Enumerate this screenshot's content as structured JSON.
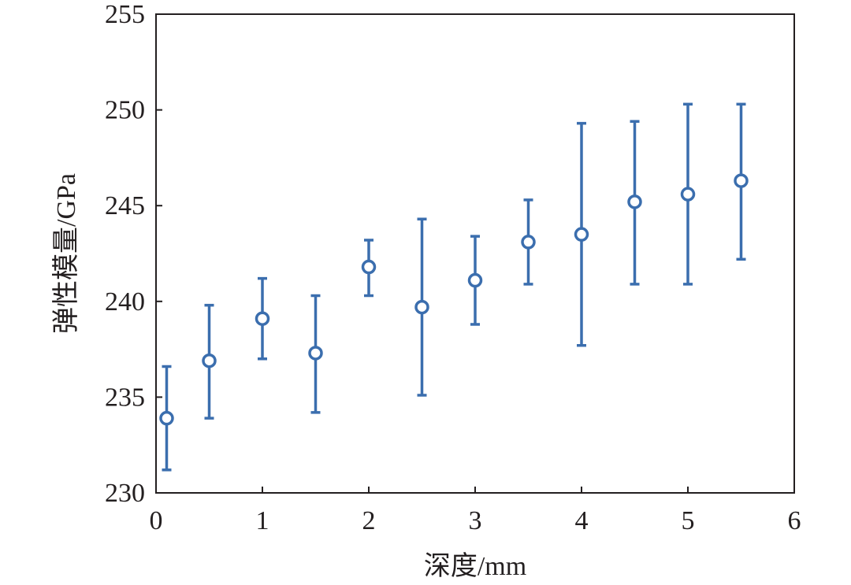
{
  "chart_data": {
    "type": "scatter",
    "xlabel": "深度/mm",
    "ylabel": "弹性模量/GPa",
    "xlim": [
      0,
      6
    ],
    "ylim": [
      230,
      255
    ],
    "xticks": [
      0,
      1,
      2,
      3,
      4,
      5,
      6
    ],
    "yticks": [
      230,
      235,
      240,
      245,
      250,
      255
    ],
    "grid": false,
    "marker_color": "#3b6eae",
    "series": [
      {
        "points": [
          {
            "x": 0.1,
            "y": 233.9,
            "err_low": 231.2,
            "err_high": 236.6
          },
          {
            "x": 0.5,
            "y": 236.9,
            "err_low": 233.9,
            "err_high": 239.8
          },
          {
            "x": 1.0,
            "y": 239.1,
            "err_low": 237.0,
            "err_high": 241.2
          },
          {
            "x": 1.5,
            "y": 237.3,
            "err_low": 234.2,
            "err_high": 240.3
          },
          {
            "x": 2.0,
            "y": 241.8,
            "err_low": 240.3,
            "err_high": 243.2
          },
          {
            "x": 2.5,
            "y": 239.7,
            "err_low": 235.1,
            "err_high": 244.3
          },
          {
            "x": 3.0,
            "y": 241.1,
            "err_low": 238.8,
            "err_high": 243.4
          },
          {
            "x": 3.5,
            "y": 243.1,
            "err_low": 240.9,
            "err_high": 245.3
          },
          {
            "x": 4.0,
            "y": 243.5,
            "err_low": 237.7,
            "err_high": 249.3
          },
          {
            "x": 4.5,
            "y": 245.2,
            "err_low": 240.9,
            "err_high": 249.4
          },
          {
            "x": 5.0,
            "y": 245.6,
            "err_low": 240.9,
            "err_high": 250.3
          },
          {
            "x": 5.5,
            "y": 246.3,
            "err_low": 242.2,
            "err_high": 250.3
          }
        ]
      }
    ]
  }
}
